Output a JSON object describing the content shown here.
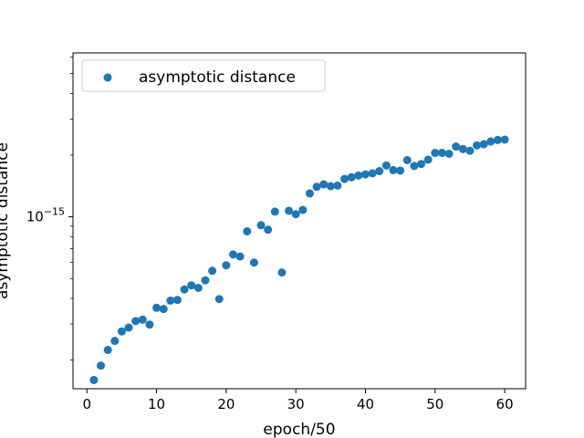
{
  "chart_data": {
    "type": "scatter",
    "xlabel": "epoch/50",
    "ylabel": "asymptotic distance",
    "yscale": "log",
    "xlim": [
      -2,
      63
    ],
    "ylim": [
      1.45e-16,
      6.3e-15
    ],
    "xticks": [
      0,
      10,
      20,
      30,
      40,
      50,
      60
    ],
    "xtick_labels": [
      "0",
      "10",
      "20",
      "30",
      "40",
      "50",
      "60"
    ],
    "yticks": [
      1e-15
    ],
    "ytick_labels": [
      {
        "base": "10",
        "exponent": "−15"
      }
    ],
    "legend": {
      "label": "asymptotic distance",
      "position": "top-left"
    },
    "grid": false,
    "color": "#1f77b4",
    "series": [
      {
        "name": "asymptotic distance",
        "x": [
          1,
          2,
          3,
          4,
          5,
          6,
          7,
          8,
          9,
          10,
          11,
          12,
          13,
          14,
          15,
          16,
          17,
          18,
          19,
          20,
          21,
          22,
          23,
          24,
          25,
          26,
          27,
          28,
          29,
          30,
          31,
          32,
          33,
          34,
          35,
          36,
          37,
          38,
          39,
          40,
          41,
          42,
          43,
          44,
          45,
          46,
          47,
          48,
          49,
          50,
          51,
          52,
          53,
          54,
          55,
          56,
          57,
          58,
          59,
          60
        ],
        "y": [
          1.6e-16,
          1.88e-16,
          2.24e-16,
          2.48e-16,
          2.76e-16,
          2.88e-16,
          3.1e-16,
          3.15e-16,
          2.98e-16,
          3.6e-16,
          3.55e-16,
          3.9e-16,
          3.93e-16,
          4.42e-16,
          4.63e-16,
          4.5e-16,
          4.9e-16,
          5.45e-16,
          3.97e-16,
          5.8e-16,
          6.55e-16,
          6.4e-16,
          8.5e-16,
          5.98e-16,
          9.1e-16,
          8.65e-16,
          1.06e-15,
          5.35e-16,
          1.07e-15,
          1.03e-15,
          1.08e-15,
          1.3e-15,
          1.4e-15,
          1.44e-15,
          1.41e-15,
          1.42e-15,
          1.53e-15,
          1.56e-15,
          1.59e-15,
          1.61e-15,
          1.63e-15,
          1.67e-15,
          1.78e-15,
          1.69e-15,
          1.68e-15,
          1.89e-15,
          1.77e-15,
          1.81e-15,
          1.9e-15,
          2.05e-15,
          2.05e-15,
          2.03e-15,
          2.2e-15,
          2.14e-15,
          2.1e-15,
          2.23e-15,
          2.26e-15,
          2.33e-15,
          2.37e-15,
          2.38e-15
        ]
      }
    ]
  }
}
